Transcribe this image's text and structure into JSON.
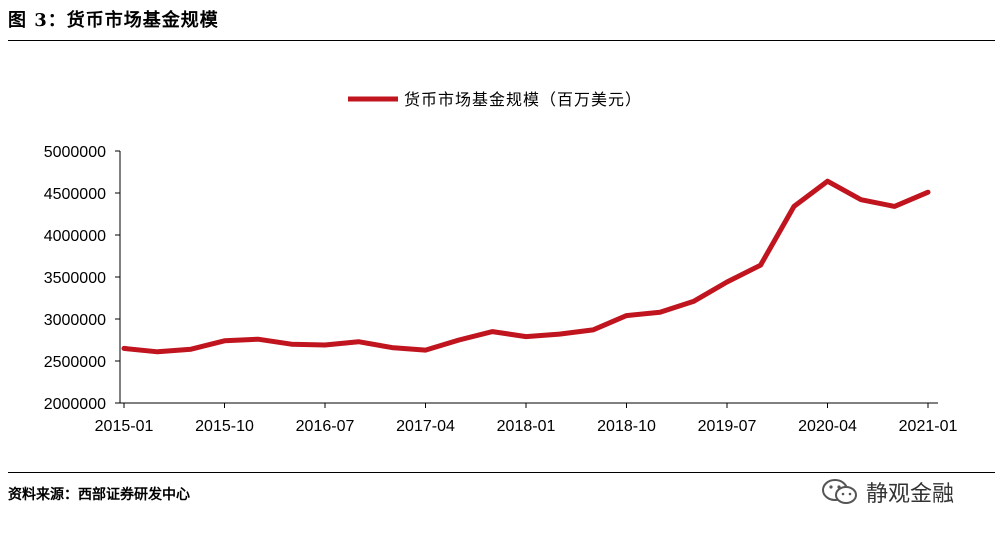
{
  "figure": {
    "title": "图 3：货币市场基金规模",
    "source": "资料来源：西部证券研发中心",
    "watermark": "静观金融"
  },
  "chart_data": {
    "type": "line",
    "legend_position": "top-center",
    "grid": false,
    "ylim": [
      2000000,
      5000000
    ],
    "y_ticks": [
      2000000,
      2500000,
      3000000,
      3500000,
      4000000,
      4500000,
      5000000
    ],
    "x_tick_labels": [
      "2015-01",
      "2015-10",
      "2016-07",
      "2017-04",
      "2018-01",
      "2018-10",
      "2019-07",
      "2020-04",
      "2021-01"
    ],
    "x": [
      "2015-01",
      "2015-04",
      "2015-07",
      "2015-10",
      "2016-01",
      "2016-04",
      "2016-07",
      "2016-10",
      "2017-01",
      "2017-04",
      "2017-07",
      "2017-10",
      "2018-01",
      "2018-04",
      "2018-07",
      "2018-10",
      "2019-01",
      "2019-04",
      "2019-07",
      "2019-10",
      "2020-01",
      "2020-04",
      "2020-07",
      "2020-10",
      "2021-01"
    ],
    "series": [
      {
        "name": "货币市场基金规模（百万美元）",
        "color": "#c0141f",
        "values": [
          2650000,
          2610000,
          2640000,
          2740000,
          2760000,
          2700000,
          2690000,
          2730000,
          2660000,
          2630000,
          2750000,
          2850000,
          2790000,
          2820000,
          2870000,
          3040000,
          3080000,
          3210000,
          3440000,
          3640000,
          4340000,
          4640000,
          4420000,
          4340000,
          4510000
        ]
      }
    ]
  }
}
